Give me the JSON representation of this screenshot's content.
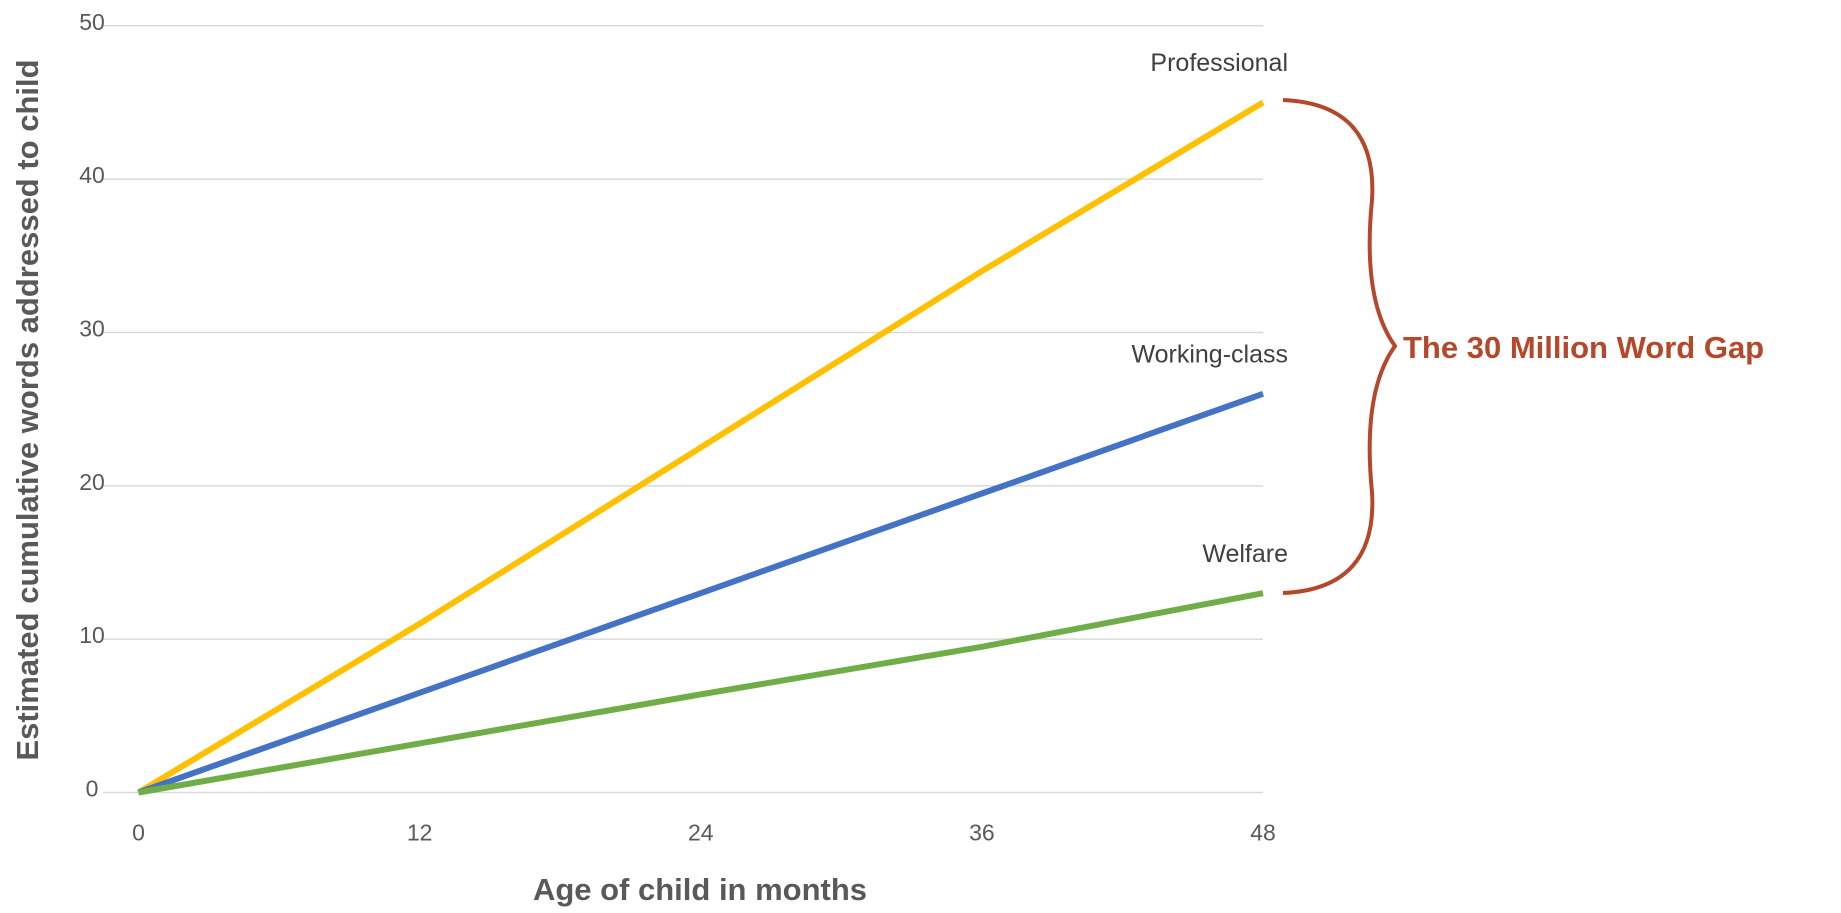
{
  "chart_data": {
    "type": "line",
    "x_label": "Age of child in months",
    "y_label": "Estimated cumulative words addressed to child",
    "annotation": "The 30 Million Word Gap",
    "x": [
      0,
      12,
      24,
      36,
      48
    ],
    "series": [
      {
        "name": "Professional",
        "color": "#ffc000",
        "values": [
          0,
          11,
          22.5,
          34,
          45
        ]
      },
      {
        "name": "Working-class",
        "color": "#4472c4",
        "values": [
          0,
          6.5,
          13,
          19.5,
          26
        ]
      },
      {
        "name": "Welfare",
        "color": "#70ad47",
        "values": [
          0,
          3.2,
          6.4,
          9.5,
          13
        ]
      }
    ],
    "xlim": [
      0,
      48
    ],
    "ylim": [
      0,
      50
    ],
    "xticks": [
      0,
      12,
      24,
      36,
      48
    ],
    "yticks": [
      0,
      10,
      20,
      30,
      40,
      50
    ],
    "grid": true
  }
}
